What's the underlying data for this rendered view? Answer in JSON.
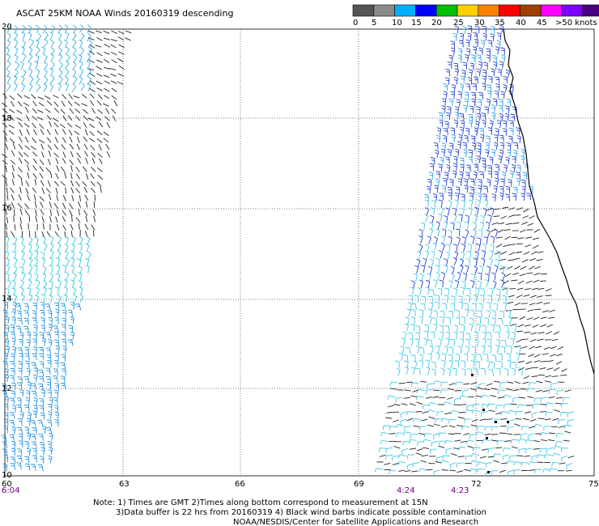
{
  "title": "ASCAT 25KM NOAA Winds 20160319 descending",
  "legend": {
    "labels": [
      "0",
      "5",
      "10",
      "15",
      "20",
      "25",
      "30",
      "35",
      "40",
      "45",
      ">50 knots"
    ],
    "colors": [
      "#555555",
      "#8a8a8a",
      "#00b0ff",
      "#0000ff",
      "#00c000",
      "#ffd000",
      "#ff8000",
      "#ff0000",
      "#a04000",
      "#ff00ff",
      "#8000ff",
      "#4a0080"
    ]
  },
  "map": {
    "lon_ticks": [
      "60",
      "63",
      "66",
      "69",
      "72",
      "75"
    ],
    "lat_ticks": [
      "20",
      "18",
      "16",
      "14",
      "12",
      "10"
    ],
    "time_labels": [
      "6:04",
      "4:24",
      "4:23"
    ]
  },
  "notes": {
    "line1": "Note: 1) Times are GMT 2)Times along bottom correspond to measurement at 15N",
    "line2": "3)Data buffer is 22 hrs from 20160319 4) Black wind barbs indicate possible contamination",
    "line3": "NOAA/NESDIS/Center for Satellite Applications and Research"
  }
}
